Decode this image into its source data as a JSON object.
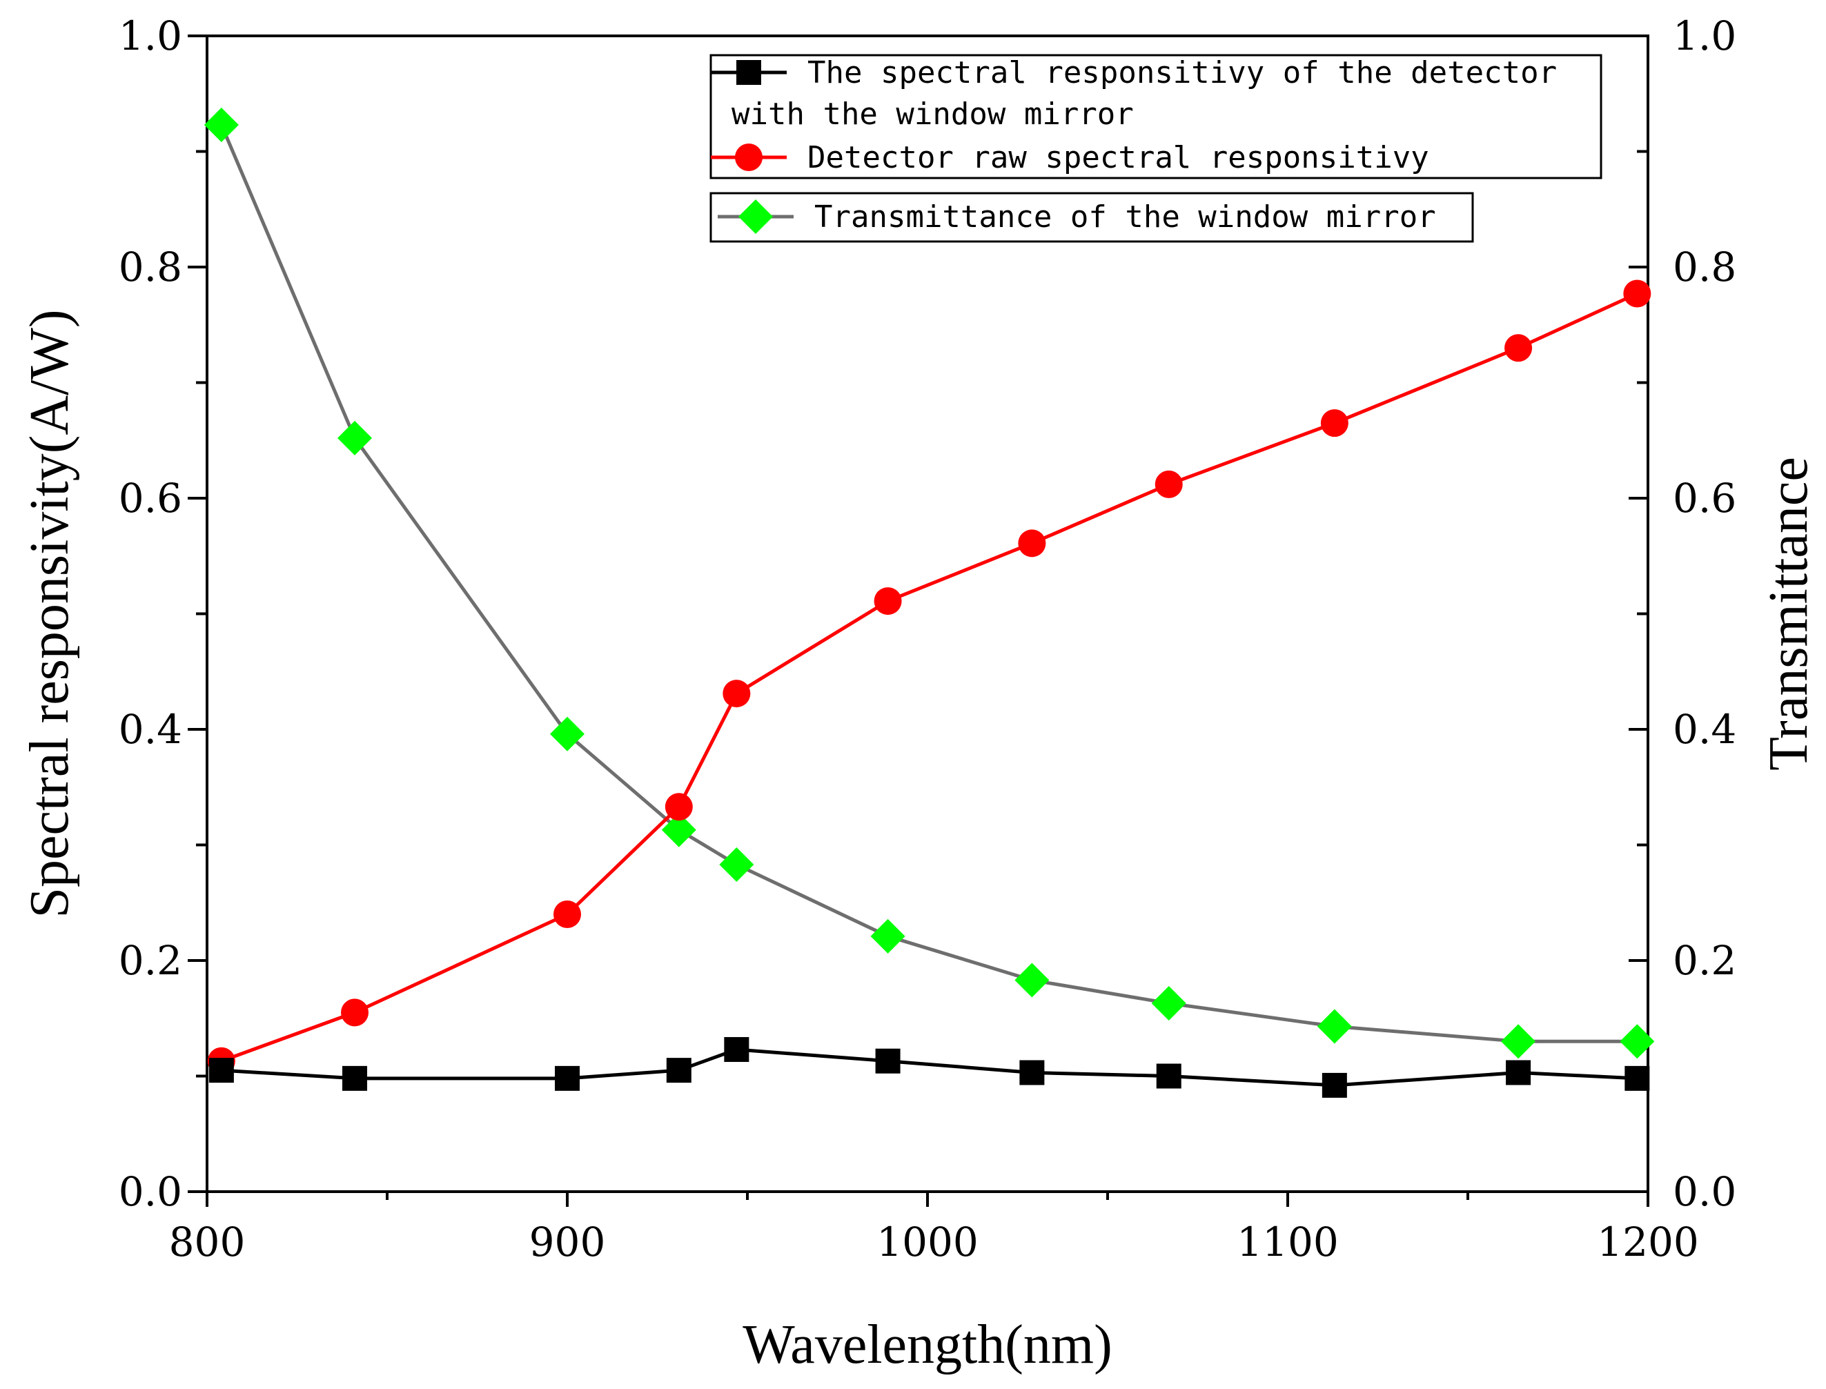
{
  "chart_data": {
    "type": "line",
    "xlabel": "Wavelength(nm)",
    "ylabel": "Spectral responsivity(A/W)",
    "y2label": "Transmittance",
    "xlim": [
      800,
      1200
    ],
    "ylim": [
      0,
      1.0
    ],
    "y2lim": [
      0,
      1.0
    ],
    "xticks": [
      "800",
      "900",
      "1000",
      "1100",
      "1200"
    ],
    "yticks": [
      "0.0",
      "0.2",
      "0.4",
      "0.6",
      "0.8",
      "1.0"
    ],
    "y2ticks": [
      "0.0",
      "0.2",
      "0.4",
      "0.6",
      "0.8",
      "1.0"
    ],
    "grid": false,
    "legend_position": "top-right",
    "series": [
      {
        "name": "The spectral responsitivy of the detector with the window mirror",
        "legend_lines": [
          "The spectral responsitivy of the detector",
          "with the window mirror"
        ],
        "axis": "left",
        "color": "#000000",
        "marker": "square",
        "x": [
          804,
          841,
          900,
          931,
          947,
          989,
          1029,
          1067,
          1113,
          1164,
          1197
        ],
        "values": [
          0.105,
          0.098,
          0.098,
          0.105,
          0.123,
          0.113,
          0.103,
          0.1,
          0.092,
          0.103,
          0.098
        ]
      },
      {
        "name": "Detector raw spectral responsitivy",
        "legend_lines": [
          "Detector raw spectral responsitivy"
        ],
        "axis": "left",
        "color": "#ff0000",
        "marker": "circle",
        "x": [
          804,
          841,
          900,
          931,
          947,
          989,
          1029,
          1067,
          1113,
          1164,
          1197
        ],
        "values": [
          0.113,
          0.155,
          0.24,
          0.333,
          0.431,
          0.511,
          0.561,
          0.612,
          0.665,
          0.73,
          0.777
        ]
      },
      {
        "name": "Transmittance of the window mirror",
        "legend_lines": [
          "Transmittance of the window mirror"
        ],
        "axis": "right",
        "color": "#6e6e6e",
        "marker_color": "#00ff00",
        "marker": "diamond",
        "x": [
          804,
          841,
          900,
          931,
          947,
          989,
          1029,
          1067,
          1113,
          1164,
          1197
        ],
        "values": [
          0.923,
          0.652,
          0.396,
          0.313,
          0.283,
          0.221,
          0.183,
          0.163,
          0.143,
          0.13,
          0.13
        ]
      }
    ]
  }
}
